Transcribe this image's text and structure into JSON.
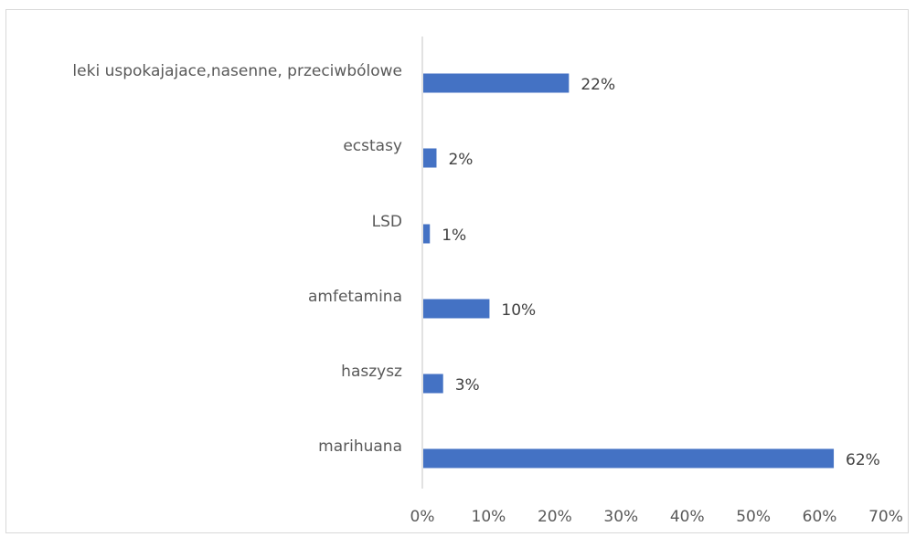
{
  "chart_data": {
    "type": "bar",
    "orientation": "horizontal",
    "categories": [
      "leki uspokajajace,nasenne, przeciwbólowe",
      "ecstasy",
      "LSD",
      "amfetamina",
      "haszysz",
      "marihuana"
    ],
    "values": [
      22,
      2,
      1,
      10,
      3,
      62
    ],
    "data_labels": [
      "22%",
      "2%",
      "1%",
      "10%",
      "3%",
      "62%"
    ],
    "x_ticks": [
      "0%",
      "10%",
      "20%",
      "30%",
      "40%",
      "50%",
      "60%",
      "70%"
    ],
    "xlim": [
      0,
      70
    ],
    "title": "",
    "xlabel": "",
    "ylabel": "",
    "grid": false,
    "legend": "none",
    "bar_color": "#4472C4",
    "axis_color": "#d9d9d9"
  }
}
